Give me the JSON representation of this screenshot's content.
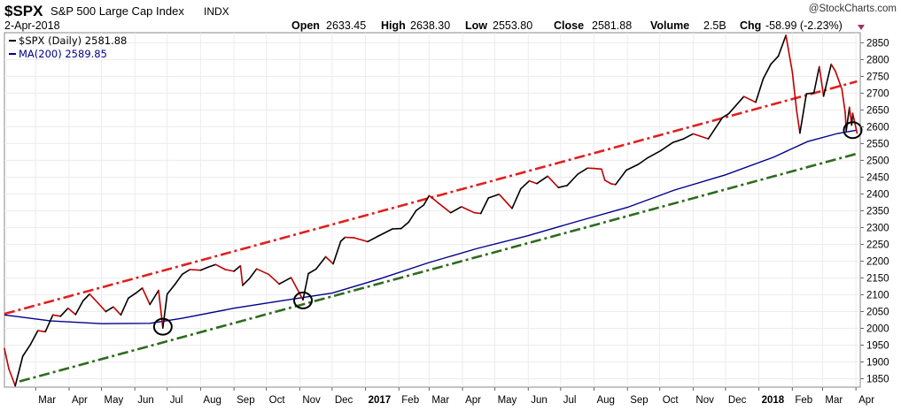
{
  "header": {
    "symbol": "$SPX",
    "name": "S&P 500 Large Cap Index",
    "exchange": "INDX",
    "date": "2-Apr-2018",
    "brand": "@StockCharts.com",
    "open_label": "Open",
    "open_value": "2633.45",
    "high_label": "High",
    "high_value": "2638.30",
    "low_label": "Low",
    "low_value": "2553.80",
    "close_label": "Close",
    "close_value": "2581.88",
    "volume_label": "Volume",
    "volume_value": "2.5B",
    "chg_label": "Chg",
    "chg_value": "-58.99 (-2.23%)",
    "colors": {
      "up": "#000000",
      "down": "#c00000",
      "ma": "#00008b",
      "resistance": "#e02020",
      "support": "#2e6b1f",
      "marker": "#000000"
    }
  },
  "legend": {
    "price": "$SPX (Daily) 2581.88",
    "ma": "MA(200) 2589.85"
  },
  "chart_data": {
    "type": "line",
    "ylim": [
      1825,
      2880
    ],
    "y_ticks": [
      1850,
      1900,
      1950,
      2000,
      2050,
      2100,
      2150,
      2200,
      2250,
      2300,
      2350,
      2400,
      2450,
      2500,
      2550,
      2600,
      2650,
      2700,
      2750,
      2800,
      2850
    ],
    "x_ticks": [
      "Mar",
      "Apr",
      "May",
      "Jun",
      "Jul",
      "Aug",
      "Sep",
      "Oct",
      "Nov",
      "Dec",
      "2017",
      "Feb",
      "Mar",
      "Apr",
      "May",
      "Jun",
      "Jul",
      "Aug",
      "Sep",
      "Oct",
      "Nov",
      "Dec",
      "2018",
      "Feb",
      "Mar",
      "Apr"
    ],
    "x_tick_bold": [
      "2017",
      "2018"
    ],
    "xlim": [
      "2016-02-01",
      "2018-04-05"
    ],
    "x_tick_dates": [
      "2016-03-01",
      "2016-04-01",
      "2016-05-01",
      "2016-06-01",
      "2016-07-01",
      "2016-08-01",
      "2016-09-01",
      "2016-10-01",
      "2016-11-01",
      "2016-12-01",
      "2017-01-01",
      "2017-02-01",
      "2017-03-01",
      "2017-04-01",
      "2017-05-01",
      "2017-06-01",
      "2017-07-01",
      "2017-08-01",
      "2017-09-01",
      "2017-10-01",
      "2017-11-01",
      "2017-12-01",
      "2018-01-01",
      "2018-02-01",
      "2018-03-01",
      "2018-04-01"
    ],
    "series": [
      {
        "name": "$SPX (Daily)",
        "x": [
          "2016-02-01",
          "2016-02-05",
          "2016-02-11",
          "2016-02-18",
          "2016-02-25",
          "2016-03-03",
          "2016-03-10",
          "2016-03-17",
          "2016-03-24",
          "2016-03-31",
          "2016-04-07",
          "2016-04-14",
          "2016-04-20",
          "2016-04-28",
          "2016-05-05",
          "2016-05-12",
          "2016-05-19",
          "2016-05-26",
          "2016-06-02",
          "2016-06-08",
          "2016-06-15",
          "2016-06-23",
          "2016-06-27",
          "2016-07-01",
          "2016-07-08",
          "2016-07-15",
          "2016-07-22",
          "2016-08-01",
          "2016-08-08",
          "2016-08-15",
          "2016-08-24",
          "2016-09-01",
          "2016-09-07",
          "2016-09-09",
          "2016-09-15",
          "2016-09-22",
          "2016-10-03",
          "2016-10-13",
          "2016-10-24",
          "2016-11-04",
          "2016-11-09",
          "2016-11-16",
          "2016-11-25",
          "2016-12-02",
          "2016-12-09",
          "2016-12-13",
          "2016-12-21",
          "2017-01-03",
          "2017-01-13",
          "2017-01-26",
          "2017-02-03",
          "2017-02-10",
          "2017-02-17",
          "2017-02-24",
          "2017-03-01",
          "2017-03-10",
          "2017-03-21",
          "2017-03-31",
          "2017-04-12",
          "2017-04-18",
          "2017-04-25",
          "2017-05-05",
          "2017-05-17",
          "2017-05-25",
          "2017-06-02",
          "2017-06-09",
          "2017-06-19",
          "2017-06-29",
          "2017-07-07",
          "2017-07-17",
          "2017-07-26",
          "2017-08-01",
          "2017-08-08",
          "2017-08-11",
          "2017-08-17",
          "2017-08-21",
          "2017-08-31",
          "2017-09-11",
          "2017-09-20",
          "2017-10-02",
          "2017-10-13",
          "2017-10-23",
          "2017-11-01",
          "2017-11-15",
          "2017-11-28",
          "2017-12-04",
          "2017-12-18",
          "2017-12-29",
          "2018-01-05",
          "2018-01-12",
          "2018-01-19",
          "2018-01-26",
          "2018-02-01",
          "2018-02-05",
          "2018-02-08",
          "2018-02-14",
          "2018-02-21",
          "2018-02-26",
          "2018-03-02",
          "2018-03-09",
          "2018-03-13",
          "2018-03-19",
          "2018-03-22",
          "2018-03-23",
          "2018-03-26",
          "2018-03-28",
          "2018-03-29",
          "2018-04-02"
        ],
        "values": [
          1940,
          1880,
          1829,
          1917,
          1951,
          1993,
          1990,
          2040,
          2036,
          2060,
          2041,
          2082,
          2102,
          2075,
          2050,
          2064,
          2040,
          2090,
          2105,
          2120,
          2071,
          2113,
          2001,
          2102,
          2130,
          2161,
          2175,
          2173,
          2182,
          2190,
          2175,
          2170,
          2186,
          2128,
          2147,
          2177,
          2161,
          2132,
          2151,
          2085,
          2163,
          2176,
          2213,
          2192,
          2259,
          2271,
          2270,
          2258,
          2275,
          2296,
          2297,
          2316,
          2351,
          2367,
          2395,
          2372,
          2344,
          2362,
          2344,
          2342,
          2388,
          2399,
          2357,
          2415,
          2439,
          2431,
          2453,
          2419,
          2425,
          2459,
          2477,
          2476,
          2474,
          2441,
          2430,
          2428,
          2471,
          2488,
          2508,
          2529,
          2553,
          2564,
          2579,
          2564,
          2627,
          2639,
          2690,
          2673,
          2743,
          2786,
          2810,
          2872,
          2762,
          2648,
          2581,
          2698,
          2701,
          2779,
          2691,
          2786,
          2765,
          2712,
          2643,
          2588,
          2658,
          2605,
          2640,
          2581
        ]
      },
      {
        "name": "MA(200)",
        "x": [
          "2016-02-01",
          "2016-03-15",
          "2016-05-01",
          "2016-06-15",
          "2016-07-15",
          "2016-09-01",
          "2016-10-15",
          "2016-12-01",
          "2017-01-15",
          "2017-03-01",
          "2017-04-15",
          "2017-06-01",
          "2017-07-15",
          "2017-09-01",
          "2017-10-15",
          "2017-12-01",
          "2018-01-15",
          "2018-02-15",
          "2018-03-15",
          "2018-04-02"
        ],
        "values": [
          2040,
          2022,
          2014,
          2015,
          2030,
          2060,
          2082,
          2105,
          2148,
          2196,
          2238,
          2276,
          2317,
          2360,
          2412,
          2457,
          2510,
          2556,
          2580,
          2590
        ]
      }
    ],
    "trendlines": [
      {
        "x": [
          "2016-02-01",
          "2018-04-02"
        ],
        "values": [
          2043,
          2735
        ]
      },
      {
        "x": [
          "2016-02-15",
          "2018-04-02"
        ],
        "values": [
          1842,
          2520
        ]
      }
    ],
    "markers": [
      {
        "x": "2016-06-27",
        "y": 2005
      },
      {
        "x": "2016-11-04",
        "y": 2083
      },
      {
        "x": "2018-03-29",
        "y": 2590
      }
    ]
  }
}
